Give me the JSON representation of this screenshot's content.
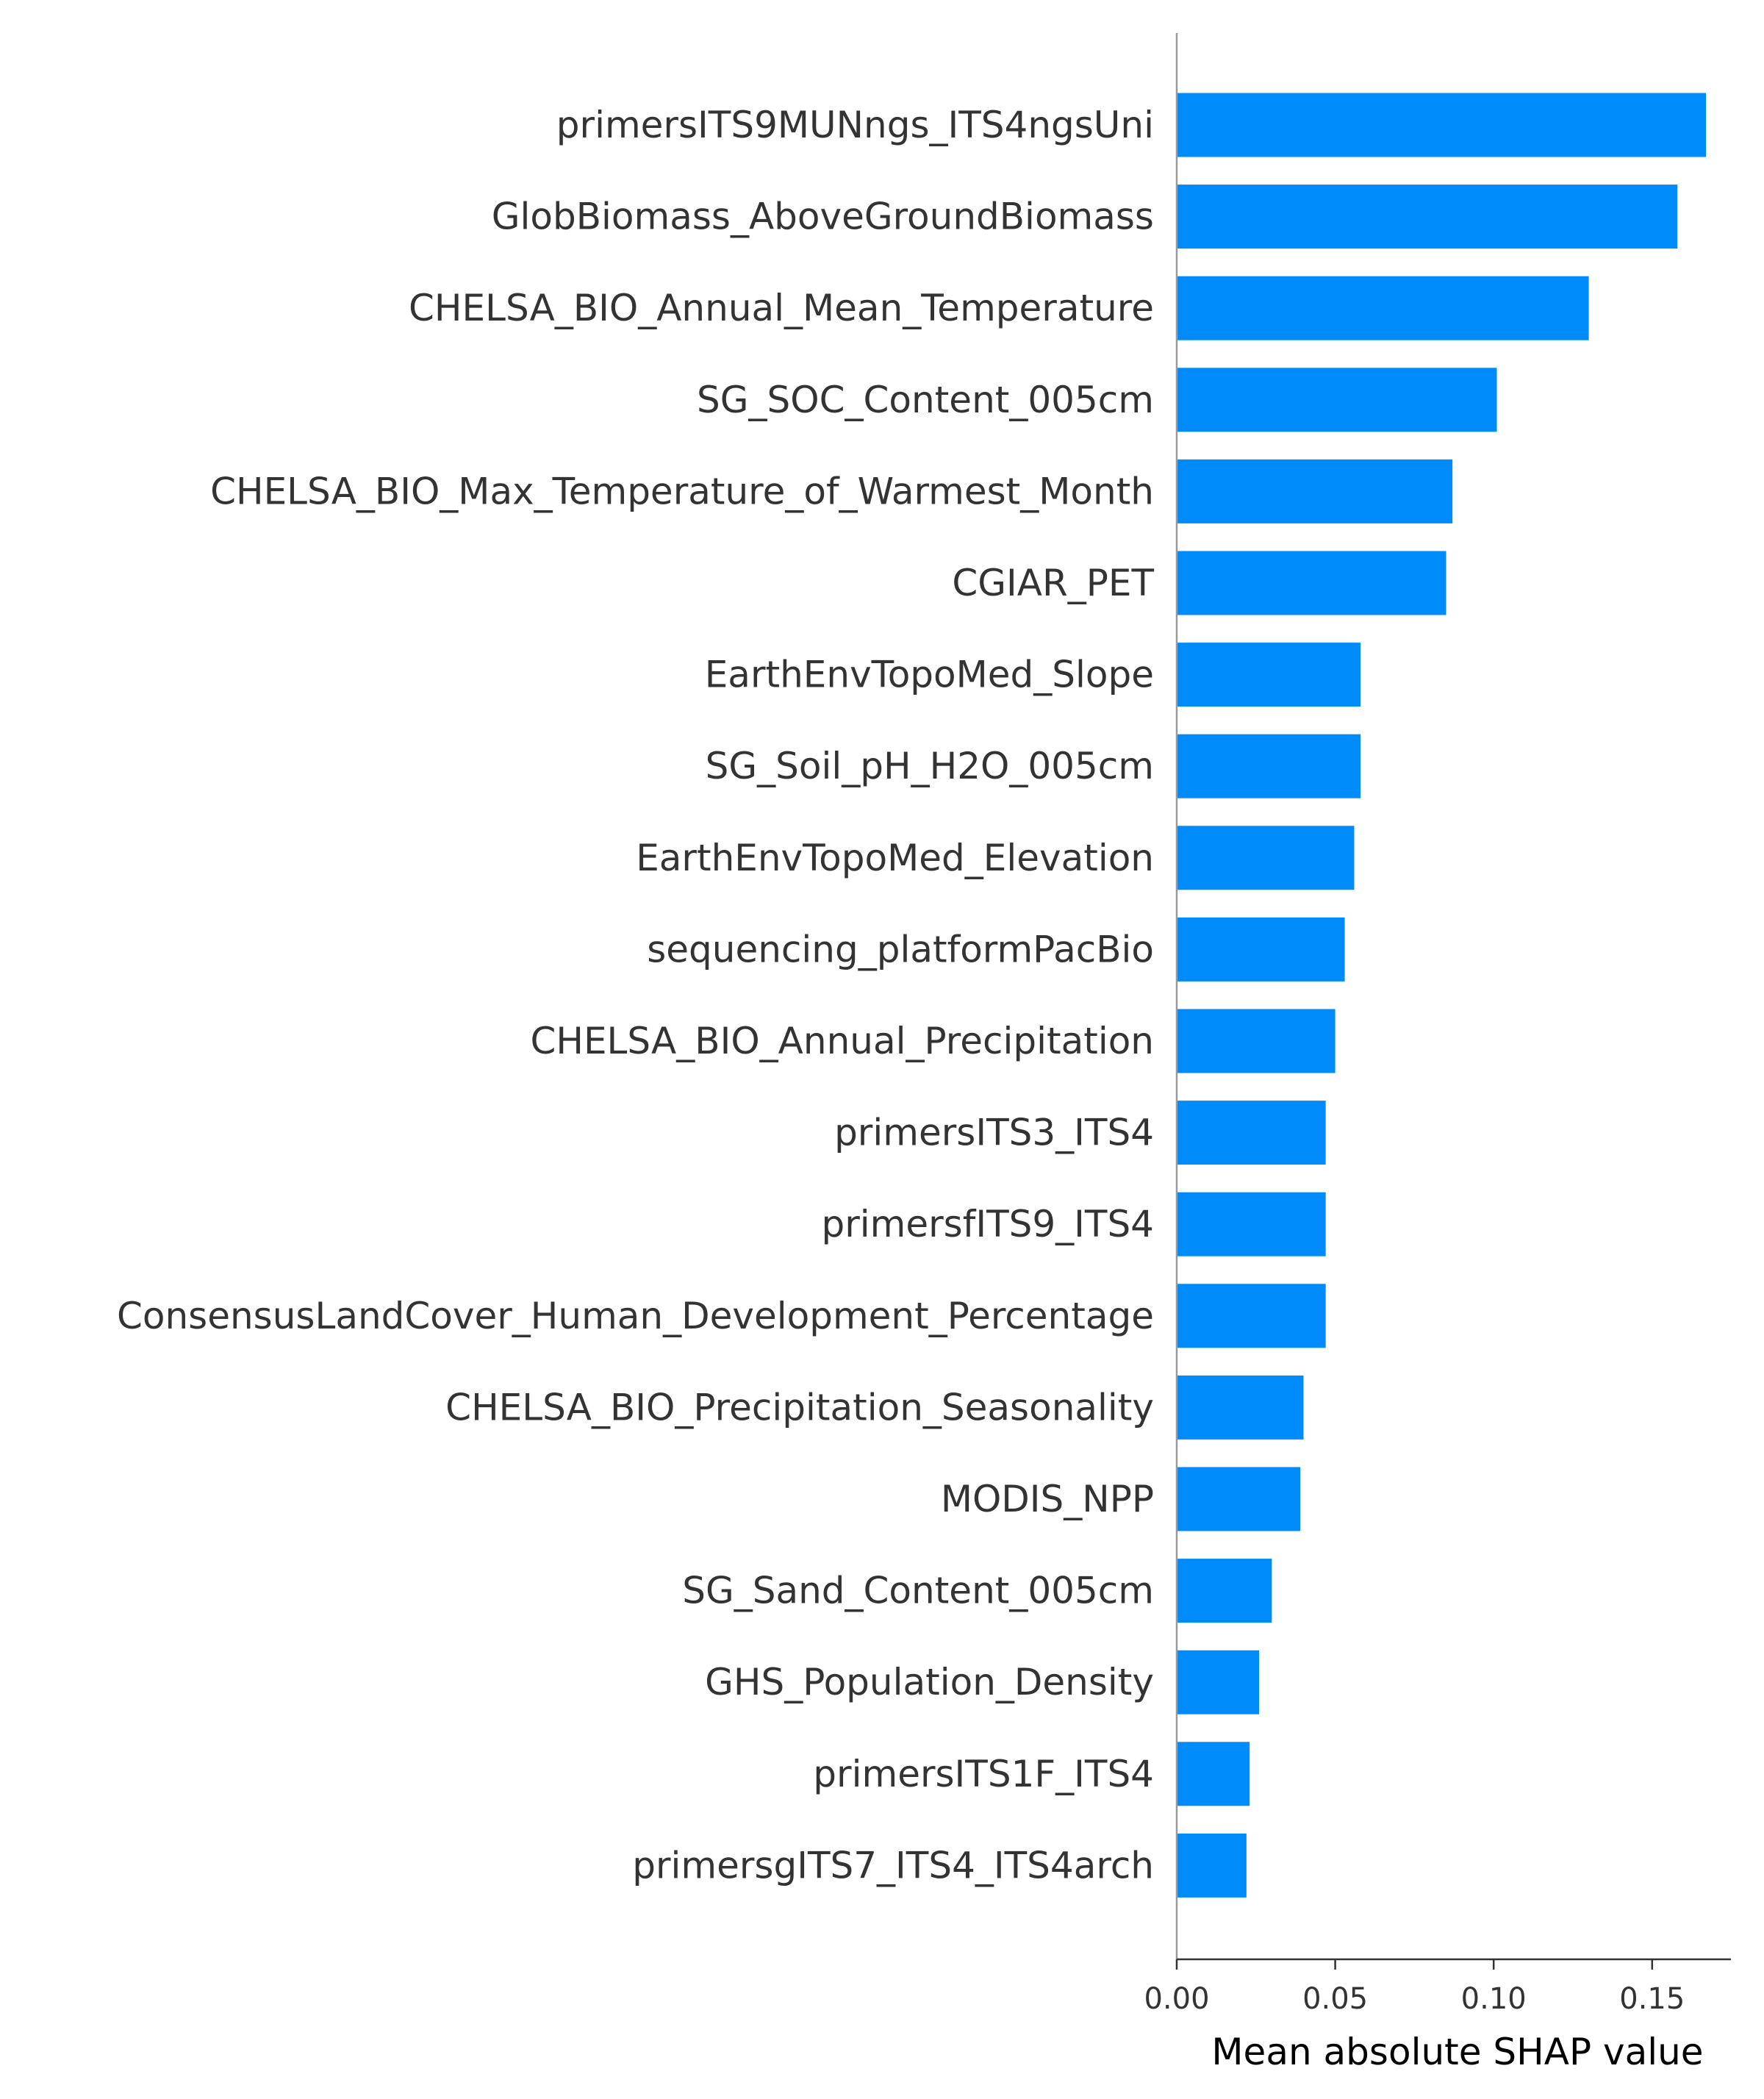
{
  "chart_data": {
    "type": "bar",
    "orientation": "horizontal",
    "categories": [
      "primersITS9MUNngs_ITS4ngsUni",
      "GlobBiomass_AboveGroundBiomass",
      "CHELSA_BIO_Annual_Mean_Temperature",
      "SG_SOC_Content_005cm",
      "CHELSA_BIO_Max_Temperature_of_Warmest_Month",
      "CGIAR_PET",
      "EarthEnvTopoMed_Slope",
      "SG_Soil_pH_H2O_005cm",
      "EarthEnvTopoMed_Elevation",
      "sequencing_platformPacBio",
      "CHELSA_BIO_Annual_Precipitation",
      "primersITS3_ITS4",
      "primersfITS9_ITS4",
      "ConsensusLandCover_Human_Development_Percentage",
      "CHELSA_BIO_Precipitation_Seasonality",
      "MODIS_NPP",
      "SG_Sand_Content_005cm",
      "GHS_Population_Density",
      "primersITS1F_ITS4",
      "primersgITS7_ITS4_ITS4arch"
    ],
    "values": [
      0.167,
      0.158,
      0.13,
      0.101,
      0.087,
      0.085,
      0.058,
      0.058,
      0.056,
      0.053,
      0.05,
      0.047,
      0.047,
      0.047,
      0.04,
      0.039,
      0.03,
      0.026,
      0.023,
      0.022
    ],
    "xlabel": "Mean absolute SHAP value",
    "ylabel": "",
    "xlim": [
      0.0,
      0.175
    ],
    "xticks": [
      0.0,
      0.05,
      0.1,
      0.15
    ],
    "xtick_labels": [
      "0.00",
      "0.05",
      "0.10",
      "0.15"
    ],
    "bar_color": "#008bfb",
    "grid": false
  }
}
